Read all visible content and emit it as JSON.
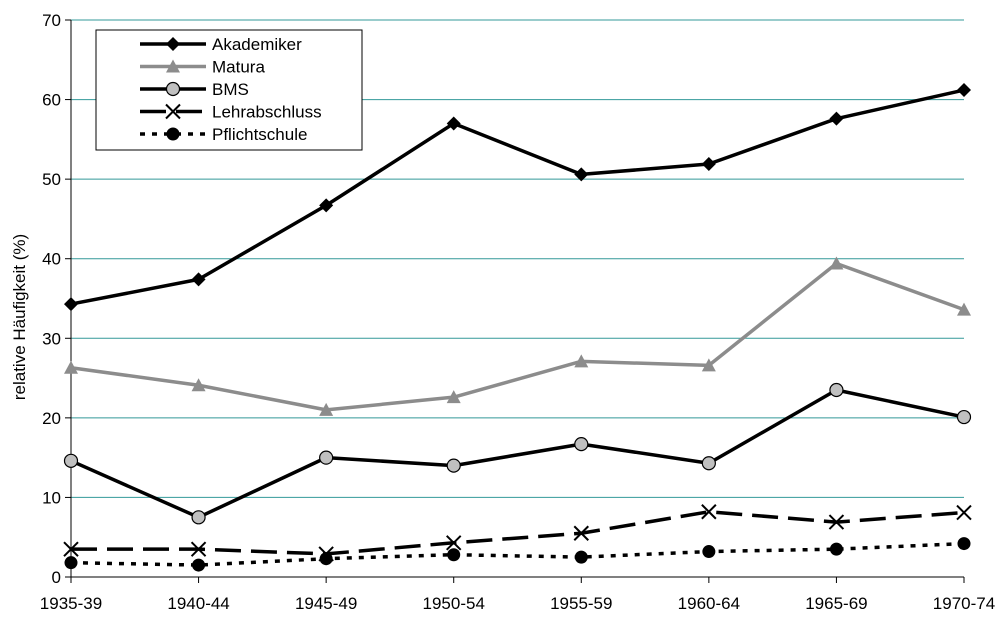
{
  "chart_data": {
    "type": "line",
    "title": "",
    "xlabel": "",
    "ylabel": "relative Häufigkeit (%)",
    "ylim": [
      0,
      70
    ],
    "yticks": [
      0,
      10,
      20,
      30,
      40,
      50,
      60,
      70
    ],
    "categories": [
      "1935-39",
      "1940-44",
      "1945-49",
      "1950-54",
      "1955-59",
      "1960-64",
      "1965-69",
      "1970-74"
    ],
    "grid": "horizontal",
    "grid_color": "#339999",
    "legend_position": "top-left",
    "series": [
      {
        "name": "Akademiker",
        "values": [
          34.3,
          37.4,
          46.7,
          57.0,
          50.6,
          51.9,
          57.6,
          61.2
        ],
        "color": "#000000",
        "marker": "diamond",
        "dash": "solid"
      },
      {
        "name": "Matura",
        "values": [
          26.3,
          24.1,
          21.0,
          22.6,
          27.1,
          26.6,
          39.4,
          33.6
        ],
        "color": "#8c8c8c",
        "marker": "triangle",
        "dash": "solid"
      },
      {
        "name": "BMS",
        "values": [
          14.6,
          7.5,
          15.0,
          14.0,
          16.7,
          14.3,
          23.5,
          20.1
        ],
        "color": "#000000",
        "marker": "circle-gray",
        "dash": "solid"
      },
      {
        "name": "Lehrabschluss",
        "values": [
          3.5,
          3.5,
          2.9,
          4.3,
          5.5,
          8.2,
          6.9,
          8.1
        ],
        "color": "#000000",
        "marker": "x",
        "dash": "long-dash"
      },
      {
        "name": "Pflichtschule",
        "values": [
          1.8,
          1.5,
          2.3,
          2.8,
          2.5,
          3.2,
          3.5,
          4.2
        ],
        "color": "#000000",
        "marker": "circle-black",
        "dash": "dot"
      }
    ]
  }
}
